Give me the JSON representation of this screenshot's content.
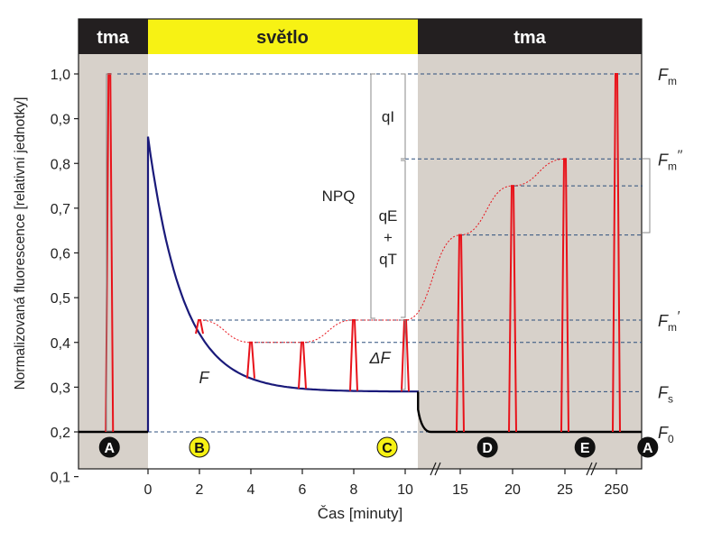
{
  "chart_data": {
    "type": "line",
    "ylabel": "Normalizovaná fluorescence [relativní jednotky]",
    "xlabel": "Čas [minuty]",
    "ylim": [
      0.1,
      1.05
    ],
    "y_ticks": [
      "0,1",
      "0,2",
      "0,3",
      "0,4",
      "0,5",
      "0,6",
      "0,7",
      "0,8",
      "0,9",
      "1,0"
    ],
    "y_tick_values": [
      0.1,
      0.2,
      0.3,
      0.4,
      0.5,
      0.6,
      0.7,
      0.8,
      0.9,
      1.0
    ],
    "x_ticks": [
      "0",
      "2",
      "4",
      "6",
      "8",
      "10",
      "15",
      "20",
      "25",
      "250"
    ],
    "phases": [
      {
        "label": "tma",
        "kind": "dark"
      },
      {
        "label": "světlo",
        "kind": "light"
      },
      {
        "label": "tma",
        "kind": "dark"
      }
    ],
    "points": [
      "A",
      "B",
      "C",
      "D",
      "E",
      "A"
    ],
    "levels": {
      "Fm": 1.0,
      "Fm_pp": 0.81,
      "Fm_p": 0.45,
      "Fs": 0.29,
      "F0": 0.2
    },
    "right_labels": [
      {
        "main": "F",
        "sub": "m",
        "sup": ""
      },
      {
        "main": "F",
        "sub": "m",
        "sup": "′′"
      },
      {
        "main": "F",
        "sub": "m",
        "sup": "′"
      },
      {
        "main": "F",
        "sub": "s",
        "sup": ""
      },
      {
        "main": "F",
        "sub": "0",
        "sup": ""
      }
    ],
    "annotations": {
      "npq": "NPQ",
      "qi": "qI",
      "qe": "qE",
      "plus": "+",
      "qt": "qT",
      "delta_f": "ΔF",
      "f": "F"
    },
    "series": [
      {
        "name": "F",
        "values": [
          [
            0,
            0.86
          ],
          [
            1,
            0.6
          ],
          [
            2,
            0.45
          ],
          [
            3,
            0.37
          ],
          [
            4,
            0.33
          ],
          [
            5,
            0.3
          ],
          [
            6,
            0.29
          ],
          [
            10.5,
            0.29
          ]
        ]
      },
      {
        "values": [
          [
            2,
            0.45
          ],
          [
            4,
            0.4
          ],
          [
            6,
            0.4
          ],
          [
            8,
            0.45
          ],
          [
            10,
            0.45
          ],
          [
            15,
            0.64
          ],
          [
            20,
            0.75
          ],
          [
            25,
            0.81
          ]
        ]
      }
    ],
    "pulses": [
      {
        "x": -1.5,
        "peak": 1.0
      },
      {
        "x": 2,
        "peak": 0.45
      },
      {
        "x": 4,
        "peak": 0.4
      },
      {
        "x": 6,
        "peak": 0.4
      },
      {
        "x": 8,
        "peak": 0.45
      },
      {
        "x": 10,
        "peak": 0.45
      },
      {
        "x": 15,
        "peak": 0.64
      },
      {
        "x": 20,
        "peak": 0.75
      },
      {
        "x": 25,
        "peak": 0.81
      },
      {
        "x": 250,
        "peak": 1.0
      }
    ],
    "colors": {
      "dark_bg": "#d7d1ca",
      "header_dark": "#231f20",
      "header_light": "#f7f214",
      "curve": "#1a1a7a",
      "pulse": "#e8121a",
      "guide": "#2c4f7c"
    },
    "grid": false
  }
}
